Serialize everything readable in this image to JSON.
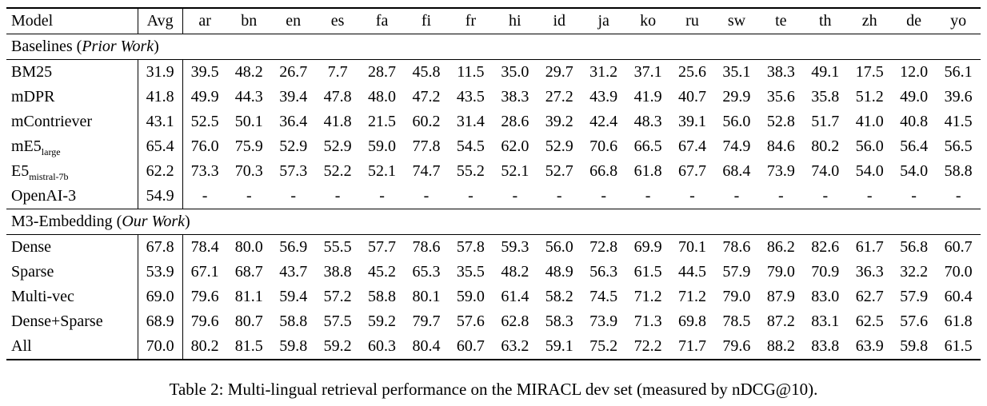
{
  "caption": "Table 2: Multi-lingual retrieval performance on the MIRACL dev set (measured by nDCG@10).",
  "table": {
    "columns": [
      "Model",
      "Avg",
      "ar",
      "bn",
      "en",
      "es",
      "fa",
      "fi",
      "fr",
      "hi",
      "id",
      "ja",
      "ko",
      "ru",
      "sw",
      "te",
      "th",
      "zh",
      "de",
      "yo"
    ],
    "sections": [
      {
        "label_plain": "Baselines (",
        "label_italic": "Prior Work",
        "label_close": ")",
        "rows": [
          {
            "model": "BM25",
            "sub": "",
            "bold_indices": [],
            "values": [
              "31.9",
              "39.5",
              "48.2",
              "26.7",
              "7.7",
              "28.7",
              "45.8",
              "11.5",
              "35.0",
              "29.7",
              "31.2",
              "37.1",
              "25.6",
              "35.1",
              "38.3",
              "49.1",
              "17.5",
              "12.0",
              "56.1"
            ]
          },
          {
            "model": "mDPR",
            "sub": "",
            "bold_indices": [],
            "values": [
              "41.8",
              "49.9",
              "44.3",
              "39.4",
              "47.8",
              "48.0",
              "47.2",
              "43.5",
              "38.3",
              "27.2",
              "43.9",
              "41.9",
              "40.7",
              "29.9",
              "35.6",
              "35.8",
              "51.2",
              "49.0",
              "39.6"
            ]
          },
          {
            "model": "mContriever",
            "sub": "",
            "bold_indices": [],
            "values": [
              "43.1",
              "52.5",
              "50.1",
              "36.4",
              "41.8",
              "21.5",
              "60.2",
              "31.4",
              "28.6",
              "39.2",
              "42.4",
              "48.3",
              "39.1",
              "56.0",
              "52.8",
              "51.7",
              "41.0",
              "40.8",
              "41.5"
            ]
          },
          {
            "model": "mE5",
            "sub": "large",
            "bold_indices": [],
            "values": [
              "65.4",
              "76.0",
              "75.9",
              "52.9",
              "52.9",
              "59.0",
              "77.8",
              "54.5",
              "62.0",
              "52.9",
              "70.6",
              "66.5",
              "67.4",
              "74.9",
              "84.6",
              "80.2",
              "56.0",
              "56.4",
              "56.5"
            ]
          },
          {
            "model": "E5",
            "sub": "mistral-7b",
            "bold_indices": [],
            "values": [
              "62.2",
              "73.3",
              "70.3",
              "57.3",
              "52.2",
              "52.1",
              "74.7",
              "55.2",
              "52.1",
              "52.7",
              "66.8",
              "61.8",
              "67.7",
              "68.4",
              "73.9",
              "74.0",
              "54.0",
              "54.0",
              "58.8"
            ]
          },
          {
            "model": "OpenAI-3",
            "sub": "",
            "bold_indices": [],
            "values": [
              "54.9",
              "-",
              "-",
              "-",
              "-",
              "-",
              "-",
              "-",
              "-",
              "-",
              "-",
              "-",
              "-",
              "-",
              "-",
              "-",
              "-",
              "-",
              "-"
            ]
          }
        ]
      },
      {
        "label_plain": "M3-Embedding (",
        "label_italic": "Our Work",
        "label_close": ")",
        "rows": [
          {
            "model": "Dense",
            "sub": "",
            "bold_indices": [],
            "values": [
              "67.8",
              "78.4",
              "80.0",
              "56.9",
              "55.5",
              "57.7",
              "78.6",
              "57.8",
              "59.3",
              "56.0",
              "72.8",
              "69.9",
              "70.1",
              "78.6",
              "86.2",
              "82.6",
              "61.7",
              "56.8",
              "60.7"
            ]
          },
          {
            "model": "Sparse",
            "sub": "",
            "bold_indices": [],
            "values": [
              "53.9",
              "67.1",
              "68.7",
              "43.7",
              "38.8",
              "45.2",
              "65.3",
              "35.5",
              "48.2",
              "48.9",
              "56.3",
              "61.5",
              "44.5",
              "57.9",
              "79.0",
              "70.9",
              "36.3",
              "32.2",
              "70.0"
            ]
          },
          {
            "model": "Multi-vec",
            "sub": "",
            "bold_indices": [],
            "values": [
              "69.0",
              "79.6",
              "81.1",
              "59.4",
              "57.2",
              "58.8",
              "80.1",
              "59.0",
              "61.4",
              "58.2",
              "74.5",
              "71.2",
              "71.2",
              "79.0",
              "87.9",
              "83.0",
              "62.7",
              "57.9",
              "60.4"
            ]
          },
          {
            "model": "Dense+Sparse",
            "sub": "",
            "bold_indices": [
              18
            ],
            "values": [
              "68.9",
              "79.6",
              "80.7",
              "58.8",
              "57.5",
              "59.2",
              "79.7",
              "57.6",
              "62.8",
              "58.3",
              "73.9",
              "71.3",
              "69.8",
              "78.5",
              "87.2",
              "83.1",
              "62.5",
              "57.6",
              "61.8"
            ]
          },
          {
            "model": "All",
            "sub": "",
            "bold_indices": [
              0,
              1,
              2,
              3,
              4,
              5,
              6,
              7,
              8,
              9,
              10,
              11,
              12,
              13,
              14,
              15,
              16,
              17
            ],
            "values": [
              "70.0",
              "80.2",
              "81.5",
              "59.8",
              "59.2",
              "60.3",
              "80.4",
              "60.7",
              "63.2",
              "59.1",
              "75.2",
              "72.2",
              "71.7",
              "79.6",
              "88.2",
              "83.8",
              "63.9",
              "59.8",
              "61.5"
            ]
          }
        ]
      }
    ]
  }
}
